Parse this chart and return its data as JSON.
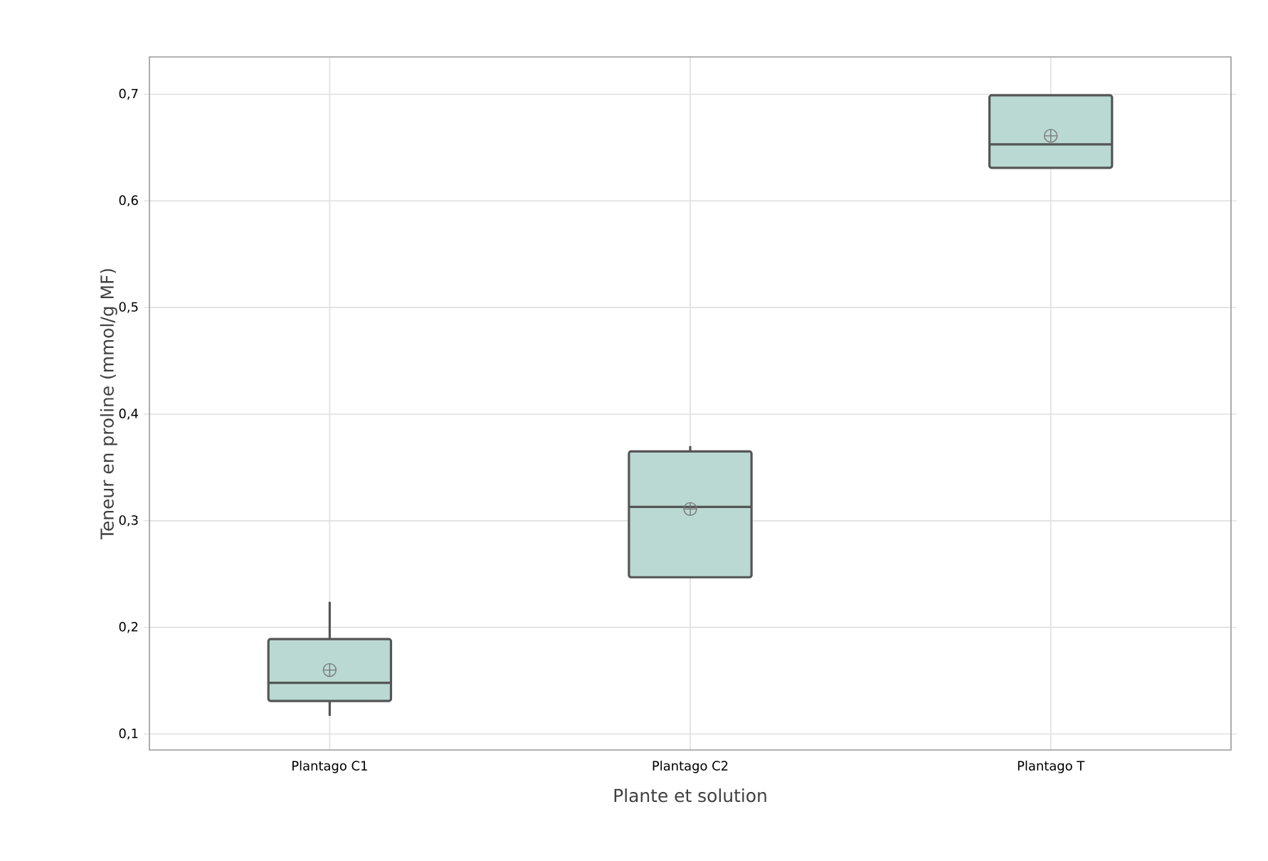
{
  "chart_data": {
    "type": "box",
    "xlabel": "Plante et solution",
    "ylabel": "Teneur en proline (mmol/g MF)",
    "categories": [
      "Plantago C1",
      "Plantago C2",
      "Plantago T"
    ],
    "boxes": [
      {
        "low": 0.117,
        "q1": 0.131,
        "median": 0.148,
        "q3": 0.189,
        "high": 0.224,
        "mean": 0.16
      },
      {
        "low": 0.247,
        "q1": 0.247,
        "median": 0.313,
        "q3": 0.365,
        "high": 0.37,
        "mean": 0.311
      },
      {
        "low": 0.631,
        "q1": 0.631,
        "median": 0.653,
        "q3": 0.699,
        "high": 0.699,
        "mean": 0.661
      }
    ],
    "color": "#b9d9d2",
    "ylim": [
      0.085,
      0.735
    ],
    "yticks": [
      {
        "value": 0.1,
        "label": "0,1"
      },
      {
        "value": 0.2,
        "label": "0,2"
      },
      {
        "value": 0.3,
        "label": "0,3"
      },
      {
        "value": 0.4,
        "label": "0,4"
      },
      {
        "value": 0.5,
        "label": "0,5"
      },
      {
        "value": 0.6,
        "label": "0,6"
      },
      {
        "value": 0.7,
        "label": "0,7"
      }
    ],
    "grid": true
  }
}
